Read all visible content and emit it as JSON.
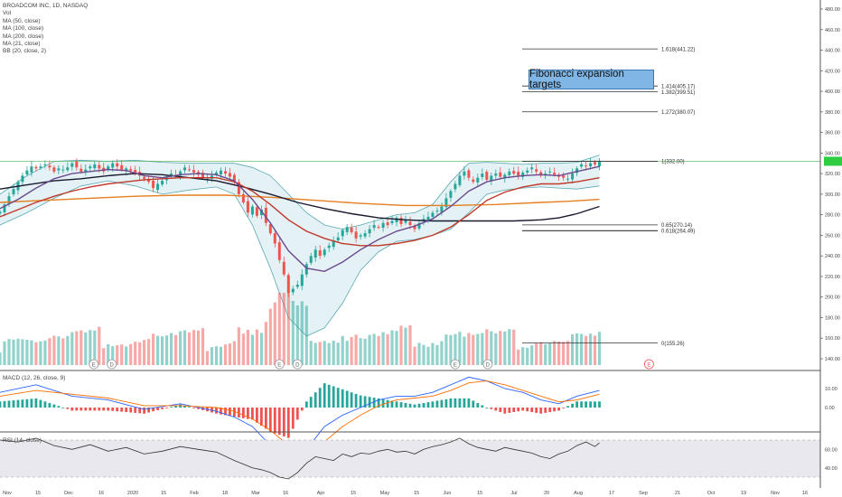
{
  "symbol_header": "BROADCOM INC, 1D, NASDAQ",
  "indicators": [
    "Vol",
    "MA (50, close)",
    "MA (100, close)",
    "MA (200, close)",
    "MA (21, close)",
    "BB (20, close, 2)"
  ],
  "annotation": "Fibonacci expansion targets",
  "macd_label": "MACD (12, 26, close, 9)",
  "rsi_label": "RSI (14, close)",
  "current_price": "332.00",
  "colors": {
    "up": "#26a69a",
    "down": "#ef5350",
    "bb_fill": "#cfe7ec",
    "bb_line": "#5aa9b3",
    "ma50": "#c0392b",
    "ma100": "#1a1a2e",
    "ma200": "#e67e22",
    "ma21": "#6b4a8e",
    "price_line": "#4caf50",
    "price_tag": "#2ecc40",
    "fib_line": "#333333",
    "macd": "#2962ff",
    "signal": "#ff6d00",
    "rsi": "#333333",
    "rsi_band": "#e8e8ee"
  },
  "chart_data": {
    "type": "line",
    "price_axis": {
      "ticks": [
        "480.00",
        "460.00",
        "440.00",
        "420.00",
        "400.00",
        "380.00",
        "360.00",
        "340.00",
        "320.00",
        "300.00",
        "280.00",
        "260.00",
        "240.00",
        "220.00",
        "200.00",
        "180.00",
        "160.00",
        "140.00"
      ],
      "min": 130,
      "max": 485
    },
    "time_axis": [
      "Nov",
      "15",
      "Dec",
      "16",
      "2020",
      "15",
      "Feb",
      "18",
      "Mar",
      "16",
      "Apr",
      "15",
      "May",
      "15",
      "Jun",
      "15",
      "Jul",
      "20",
      "Aug",
      "17",
      "Sep",
      "21",
      "Oct",
      "19",
      "Nov",
      "16"
    ],
    "fibonacci_levels": [
      {
        "label": "1.618(441.22)",
        "price": 441.22
      },
      {
        "label": "1.414(405.17)",
        "price": 405.17
      },
      {
        "label": "1.382(399.51)",
        "price": 399.51
      },
      {
        "label": "1.272(380.07)",
        "price": 380.07
      },
      {
        "label": "1(332.00)",
        "price": 332.0
      },
      {
        "label": "0.65(270.14)",
        "price": 270.14
      },
      {
        "label": "0.618(264.49)",
        "price": 264.49
      },
      {
        "label": "0(155.26)",
        "price": 155.26
      }
    ],
    "price_close": [
      [
        0,
        283
      ],
      [
        5,
        290
      ],
      [
        10,
        298
      ],
      [
        15,
        305
      ],
      [
        20,
        312
      ],
      [
        25,
        318
      ],
      [
        30,
        323
      ],
      [
        35,
        327
      ],
      [
        40,
        325
      ],
      [
        45,
        327
      ],
      [
        50,
        329
      ],
      [
        55,
        326
      ],
      [
        60,
        322
      ],
      [
        65,
        325
      ],
      [
        70,
        324
      ],
      [
        75,
        326
      ],
      [
        80,
        330
      ],
      [
        85,
        326
      ],
      [
        90,
        322
      ],
      [
        95,
        324
      ],
      [
        100,
        327
      ],
      [
        105,
        329
      ],
      [
        110,
        325
      ],
      [
        115,
        322
      ],
      [
        120,
        327
      ],
      [
        125,
        330
      ],
      [
        130,
        327
      ],
      [
        135,
        324
      ],
      [
        140,
        325
      ],
      [
        145,
        323
      ],
      [
        150,
        320
      ],
      [
        155,
        318
      ],
      [
        160,
        315
      ],
      [
        165,
        312
      ],
      [
        170,
        306
      ],
      [
        175,
        310
      ],
      [
        180,
        313
      ],
      [
        185,
        316
      ],
      [
        190,
        320
      ],
      [
        195,
        318
      ],
      [
        200,
        322
      ],
      [
        205,
        326
      ],
      [
        210,
        324
      ],
      [
        215,
        321
      ],
      [
        220,
        319
      ],
      [
        225,
        316
      ],
      [
        230,
        315
      ],
      [
        235,
        318
      ],
      [
        240,
        321
      ],
      [
        245,
        323
      ],
      [
        250,
        320
      ],
      [
        255,
        317
      ],
      [
        260,
        313
      ],
      [
        265,
        300
      ],
      [
        270,
        292
      ],
      [
        275,
        282
      ],
      [
        280,
        288
      ],
      [
        285,
        279
      ],
      [
        290,
        285
      ],
      [
        295,
        272
      ],
      [
        300,
        262
      ],
      [
        305,
        252
      ],
      [
        310,
        236
      ],
      [
        315,
        222
      ],
      [
        320,
        204
      ],
      [
        325,
        208
      ],
      [
        330,
        212
      ],
      [
        335,
        222
      ],
      [
        340,
        232
      ],
      [
        345,
        240
      ],
      [
        350,
        246
      ],
      [
        355,
        240
      ],
      [
        360,
        246
      ],
      [
        365,
        250
      ],
      [
        370,
        255
      ],
      [
        375,
        258
      ],
      [
        380,
        265
      ],
      [
        385,
        268
      ],
      [
        390,
        263
      ],
      [
        395,
        257
      ],
      [
        400,
        260
      ],
      [
        405,
        262
      ],
      [
        410,
        266
      ],
      [
        415,
        270
      ],
      [
        420,
        268
      ],
      [
        425,
        272
      ],
      [
        430,
        270
      ],
      [
        435,
        274
      ],
      [
        440,
        277
      ],
      [
        445,
        271
      ],
      [
        450,
        275
      ],
      [
        455,
        270
      ],
      [
        460,
        266
      ],
      [
        465,
        272
      ],
      [
        470,
        276
      ],
      [
        475,
        278
      ],
      [
        480,
        282
      ],
      [
        485,
        284
      ],
      [
        490,
        288
      ],
      [
        495,
        296
      ],
      [
        500,
        303
      ],
      [
        505,
        310
      ],
      [
        510,
        318
      ],
      [
        515,
        322
      ],
      [
        520,
        316
      ],
      [
        525,
        312
      ],
      [
        530,
        316
      ],
      [
        535,
        320
      ],
      [
        540,
        314
      ],
      [
        545,
        318
      ],
      [
        550,
        320
      ],
      [
        555,
        317
      ],
      [
        560,
        319
      ],
      [
        565,
        322
      ],
      [
        570,
        320
      ],
      [
        575,
        318
      ],
      [
        580,
        321
      ],
      [
        585,
        323
      ],
      [
        590,
        326
      ],
      [
        595,
        322
      ],
      [
        600,
        318
      ],
      [
        605,
        320
      ],
      [
        610,
        322
      ],
      [
        615,
        319
      ],
      [
        620,
        317
      ],
      [
        625,
        316
      ],
      [
        630,
        315
      ],
      [
        635,
        320
      ],
      [
        640,
        325
      ],
      [
        645,
        329
      ],
      [
        650,
        327
      ],
      [
        655,
        330
      ],
      [
        660,
        329
      ],
      [
        665,
        332
      ]
    ],
    "ma50": [
      [
        0,
        278
      ],
      [
        20,
        285
      ],
      [
        40,
        292
      ],
      [
        60,
        298
      ],
      [
        80,
        303
      ],
      [
        100,
        307
      ],
      [
        120,
        310
      ],
      [
        140,
        312
      ],
      [
        160,
        314
      ],
      [
        180,
        315
      ],
      [
        200,
        316
      ],
      [
        220,
        316
      ],
      [
        240,
        316
      ],
      [
        260,
        312
      ],
      [
        280,
        303
      ],
      [
        300,
        290
      ],
      [
        320,
        275
      ],
      [
        340,
        264
      ],
      [
        360,
        257
      ],
      [
        380,
        252
      ],
      [
        400,
        250
      ],
      [
        420,
        250
      ],
      [
        440,
        252
      ],
      [
        460,
        255
      ],
      [
        480,
        260
      ],
      [
        500,
        268
      ],
      [
        520,
        280
      ],
      [
        540,
        294
      ],
      [
        560,
        302
      ],
      [
        580,
        307
      ],
      [
        600,
        310
      ],
      [
        620,
        310
      ],
      [
        640,
        312
      ],
      [
        665,
        316
      ]
    ],
    "ma100": [
      [
        0,
        305
      ],
      [
        30,
        309
      ],
      [
        60,
        313
      ],
      [
        90,
        315
      ],
      [
        120,
        318
      ],
      [
        150,
        320
      ],
      [
        180,
        319
      ],
      [
        210,
        316
      ],
      [
        240,
        313
      ],
      [
        270,
        307
      ],
      [
        300,
        300
      ],
      [
        330,
        292
      ],
      [
        360,
        286
      ],
      [
        390,
        281
      ],
      [
        420,
        277
      ],
      [
        450,
        275
      ],
      [
        480,
        274
      ],
      [
        510,
        274
      ],
      [
        540,
        274
      ],
      [
        570,
        274
      ],
      [
        600,
        275
      ],
      [
        620,
        277
      ],
      [
        640,
        281
      ],
      [
        665,
        288
      ]
    ],
    "ma200": [
      [
        0,
        292
      ],
      [
        50,
        294
      ],
      [
        100,
        296
      ],
      [
        150,
        298
      ],
      [
        200,
        299
      ],
      [
        250,
        299
      ],
      [
        300,
        297
      ],
      [
        350,
        294
      ],
      [
        400,
        291
      ],
      [
        450,
        289
      ],
      [
        500,
        289
      ],
      [
        550,
        290
      ],
      [
        600,
        292
      ],
      [
        630,
        293
      ],
      [
        665,
        295
      ]
    ],
    "ma21": [
      [
        0,
        286
      ],
      [
        20,
        295
      ],
      [
        40,
        306
      ],
      [
        60,
        315
      ],
      [
        80,
        320
      ],
      [
        100,
        322
      ],
      [
        120,
        324
      ],
      [
        140,
        323
      ],
      [
        160,
        318
      ],
      [
        180,
        316
      ],
      [
        200,
        319
      ],
      [
        220,
        320
      ],
      [
        240,
        319
      ],
      [
        260,
        313
      ],
      [
        280,
        295
      ],
      [
        300,
        272
      ],
      [
        320,
        245
      ],
      [
        340,
        228
      ],
      [
        360,
        225
      ],
      [
        380,
        234
      ],
      [
        400,
        246
      ],
      [
        420,
        256
      ],
      [
        440,
        264
      ],
      [
        460,
        269
      ],
      [
        480,
        276
      ],
      [
        500,
        288
      ],
      [
        520,
        303
      ],
      [
        540,
        312
      ],
      [
        560,
        316
      ],
      [
        580,
        318
      ],
      [
        600,
        319
      ],
      [
        620,
        318
      ],
      [
        640,
        322
      ],
      [
        665,
        327
      ]
    ],
    "bb_upper": [
      [
        0,
        300
      ],
      [
        30,
        318
      ],
      [
        60,
        332
      ],
      [
        90,
        333
      ],
      [
        120,
        332
      ],
      [
        150,
        333
      ],
      [
        180,
        331
      ],
      [
        210,
        330
      ],
      [
        240,
        330
      ],
      [
        260,
        330
      ],
      [
        280,
        326
      ],
      [
        300,
        318
      ],
      [
        320,
        300
      ],
      [
        340,
        282
      ],
      [
        360,
        270
      ],
      [
        380,
        266
      ],
      [
        400,
        270
      ],
      [
        420,
        275
      ],
      [
        440,
        280
      ],
      [
        460,
        282
      ],
      [
        480,
        290
      ],
      [
        500,
        312
      ],
      [
        520,
        330
      ],
      [
        540,
        331
      ],
      [
        560,
        330
      ],
      [
        580,
        329
      ],
      [
        600,
        330
      ],
      [
        620,
        330
      ],
      [
        640,
        331
      ],
      [
        665,
        338
      ]
    ],
    "bb_lower": [
      [
        0,
        270
      ],
      [
        30,
        282
      ],
      [
        60,
        296
      ],
      [
        90,
        308
      ],
      [
        120,
        313
      ],
      [
        150,
        308
      ],
      [
        180,
        300
      ],
      [
        210,
        304
      ],
      [
        240,
        307
      ],
      [
        260,
        300
      ],
      [
        280,
        270
      ],
      [
        300,
        228
      ],
      [
        320,
        180
      ],
      [
        340,
        162
      ],
      [
        360,
        170
      ],
      [
        380,
        194
      ],
      [
        400,
        226
      ],
      [
        420,
        244
      ],
      [
        440,
        254
      ],
      [
        460,
        256
      ],
      [
        480,
        260
      ],
      [
        500,
        266
      ],
      [
        520,
        282
      ],
      [
        540,
        300
      ],
      [
        560,
        304
      ],
      [
        580,
        306
      ],
      [
        600,
        307
      ],
      [
        620,
        306
      ],
      [
        640,
        305
      ],
      [
        665,
        308
      ]
    ],
    "macd": [
      [
        0,
        8
      ],
      [
        40,
        12
      ],
      [
        80,
        6
      ],
      [
        120,
        4
      ],
      [
        160,
        -1
      ],
      [
        200,
        2
      ],
      [
        240,
        -2
      ],
      [
        260,
        -5
      ],
      [
        280,
        -10
      ],
      [
        300,
        -20
      ],
      [
        320,
        -30
      ],
      [
        340,
        -22
      ],
      [
        360,
        -10
      ],
      [
        380,
        -4
      ],
      [
        400,
        0
      ],
      [
        420,
        4
      ],
      [
        440,
        6
      ],
      [
        460,
        6
      ],
      [
        480,
        8
      ],
      [
        500,
        12
      ],
      [
        520,
        16
      ],
      [
        540,
        14
      ],
      [
        560,
        10
      ],
      [
        580,
        8
      ],
      [
        600,
        4
      ],
      [
        620,
        2
      ],
      [
        640,
        6
      ],
      [
        665,
        9
      ]
    ],
    "signal": [
      [
        0,
        6
      ],
      [
        40,
        9
      ],
      [
        80,
        7
      ],
      [
        120,
        5
      ],
      [
        160,
        1
      ],
      [
        200,
        1
      ],
      [
        240,
        0
      ],
      [
        260,
        -2
      ],
      [
        280,
        -6
      ],
      [
        300,
        -12
      ],
      [
        320,
        -20
      ],
      [
        340,
        -24
      ],
      [
        360,
        -18
      ],
      [
        380,
        -10
      ],
      [
        400,
        -4
      ],
      [
        420,
        1
      ],
      [
        440,
        4
      ],
      [
        460,
        5
      ],
      [
        480,
        6
      ],
      [
        500,
        9
      ],
      [
        520,
        13
      ],
      [
        540,
        14
      ],
      [
        560,
        12
      ],
      [
        580,
        9
      ],
      [
        600,
        6
      ],
      [
        620,
        3
      ],
      [
        640,
        4
      ],
      [
        665,
        7
      ]
    ],
    "macd_axis": [
      "10.00",
      "0.00"
    ],
    "rsi": [
      [
        0,
        70
      ],
      [
        20,
        68
      ],
      [
        40,
        72
      ],
      [
        60,
        64
      ],
      [
        80,
        60
      ],
      [
        100,
        65
      ],
      [
        120,
        58
      ],
      [
        140,
        62
      ],
      [
        160,
        55
      ],
      [
        180,
        58
      ],
      [
        200,
        63
      ],
      [
        220,
        60
      ],
      [
        240,
        57
      ],
      [
        260,
        48
      ],
      [
        270,
        44
      ],
      [
        280,
        40
      ],
      [
        290,
        38
      ],
      [
        300,
        35
      ],
      [
        310,
        30
      ],
      [
        320,
        28
      ],
      [
        330,
        35
      ],
      [
        340,
        45
      ],
      [
        350,
        52
      ],
      [
        360,
        50
      ],
      [
        370,
        48
      ],
      [
        380,
        55
      ],
      [
        390,
        52
      ],
      [
        400,
        56
      ],
      [
        410,
        55
      ],
      [
        420,
        58
      ],
      [
        430,
        60
      ],
      [
        440,
        57
      ],
      [
        450,
        58
      ],
      [
        460,
        55
      ],
      [
        470,
        60
      ],
      [
        480,
        63
      ],
      [
        490,
        65
      ],
      [
        500,
        68
      ],
      [
        510,
        72
      ],
      [
        520,
        66
      ],
      [
        530,
        62
      ],
      [
        540,
        60
      ],
      [
        550,
        58
      ],
      [
        560,
        62
      ],
      [
        570,
        60
      ],
      [
        580,
        58
      ],
      [
        590,
        56
      ],
      [
        600,
        52
      ],
      [
        610,
        50
      ],
      [
        620,
        55
      ],
      [
        630,
        58
      ],
      [
        640,
        64
      ],
      [
        650,
        68
      ],
      [
        660,
        63
      ],
      [
        665,
        67
      ]
    ],
    "rsi_axis": [
      "60.00",
      "40.00"
    ]
  }
}
